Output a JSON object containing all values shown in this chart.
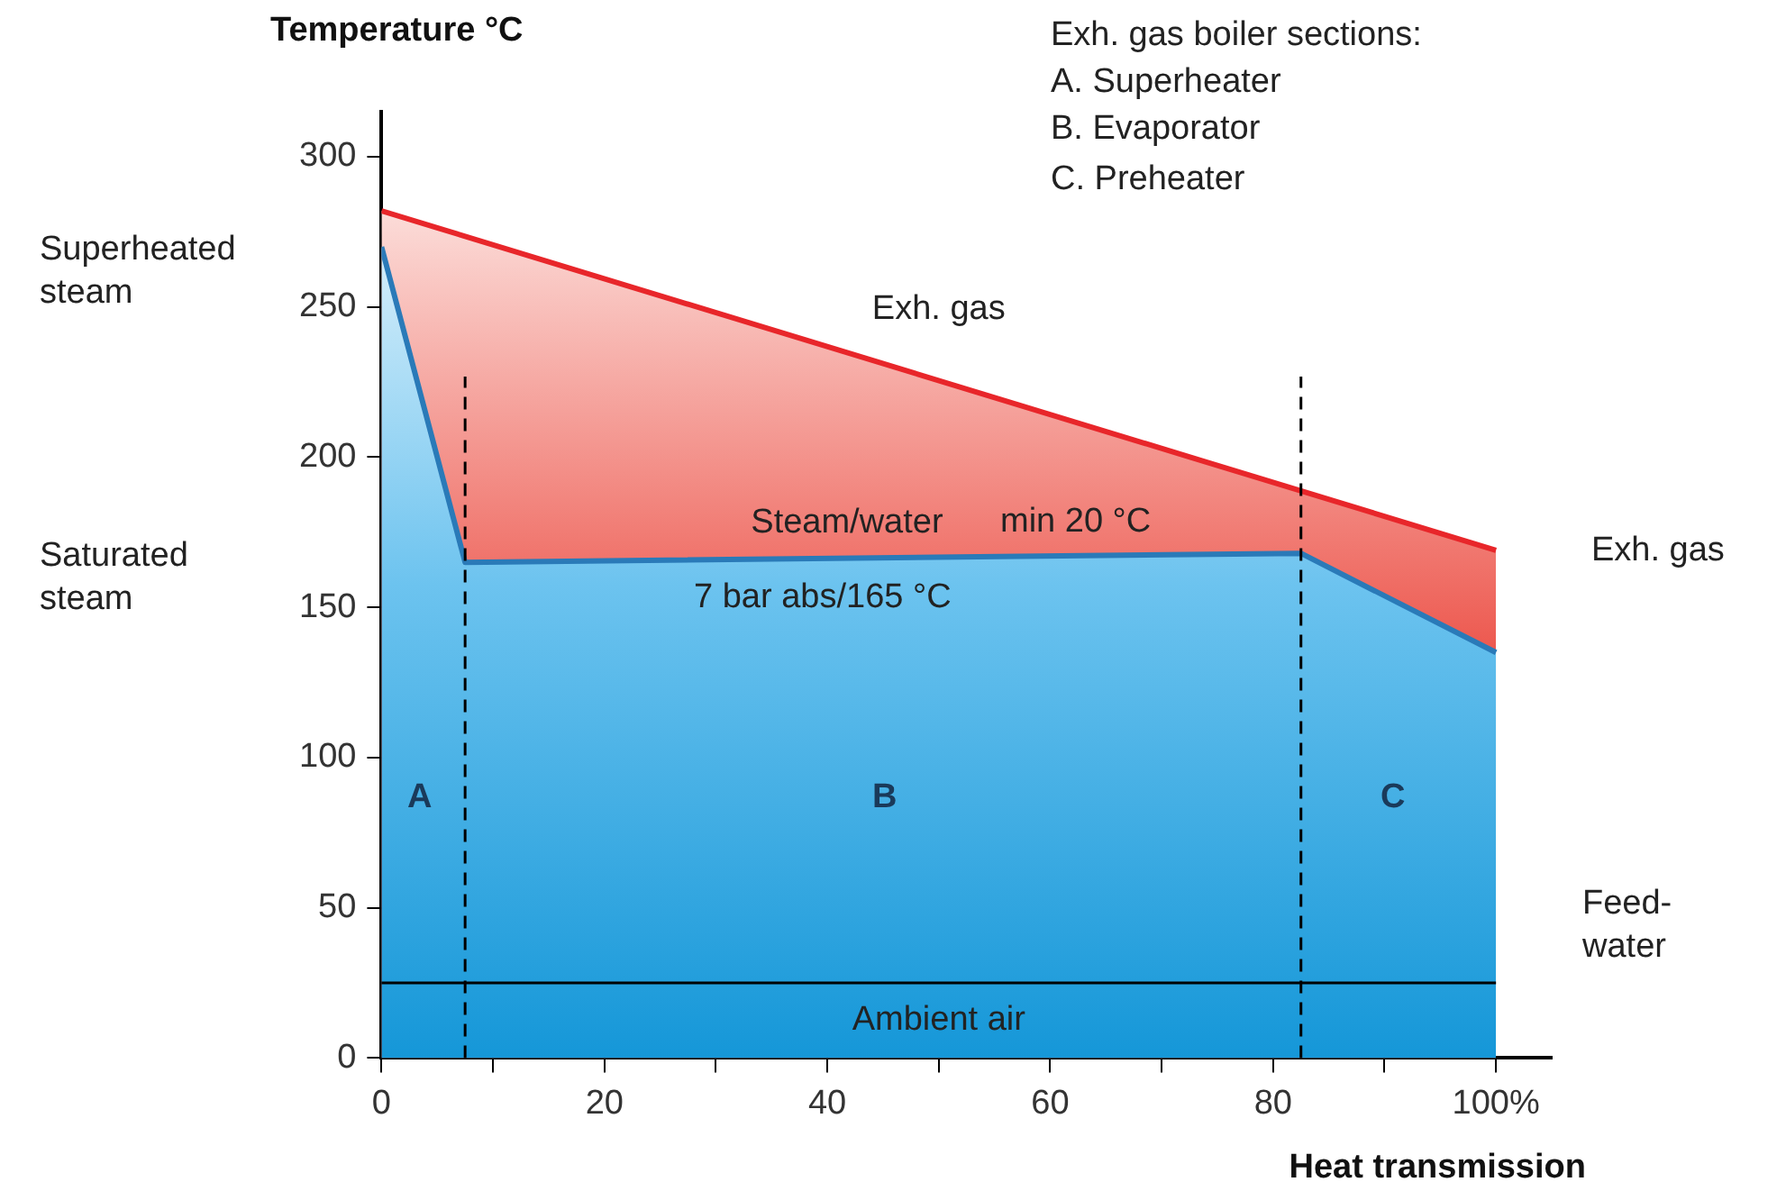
{
  "chart_data": {
    "type": "area",
    "ylabel": "Temperature °C",
    "xlabel": "Heat transmission",
    "series": [
      {
        "name": "Steam/water",
        "color": "#2a7ab8",
        "x": [
          0,
          7.5,
          82.5,
          100
        ],
        "values": [
          270,
          165,
          168,
          135
        ]
      },
      {
        "name": "Exh. gas",
        "color": "#e8262a",
        "x": [
          0,
          100
        ],
        "values": [
          282,
          169
        ]
      }
    ],
    "xlim": [
      0,
      105
    ],
    "xticks": [
      0,
      {
        "value": 10,
        "label": null
      },
      20,
      {
        "value": 30,
        "label": null
      },
      40,
      {
        "value": 50,
        "label": null
      },
      60,
      {
        "value": 70,
        "label": null
      },
      80,
      {
        "value": 90,
        "label": null
      },
      {
        "value": 100,
        "label": "100%"
      }
    ],
    "ylim": [
      0,
      315
    ],
    "yticks": [
      0,
      50,
      100,
      150,
      200,
      250,
      300
    ],
    "grid": false,
    "legend": false,
    "line_style": "solid",
    "marker": "none",
    "ref_lines": [
      {
        "axis": "x",
        "value": 7.5,
        "line_style": "dashed",
        "color": "#000000"
      },
      {
        "axis": "x",
        "value": 82.5,
        "line_style": "dashed",
        "color": "#000000"
      },
      {
        "axis": "y",
        "value": 25,
        "label": "Ambient air",
        "color": "#000000",
        "line_style": "solid"
      }
    ],
    "annotations": [
      "Exh. gas boiler sections:",
      "A. Superheater",
      "B. Evaporator",
      "C. Preheater",
      "Superheated steam",
      "Saturated steam",
      "Exh. gas",
      "Feed-water",
      "A",
      "B",
      "C",
      "min 20 °C",
      "7 bar abs/165 °C"
    ]
  }
}
